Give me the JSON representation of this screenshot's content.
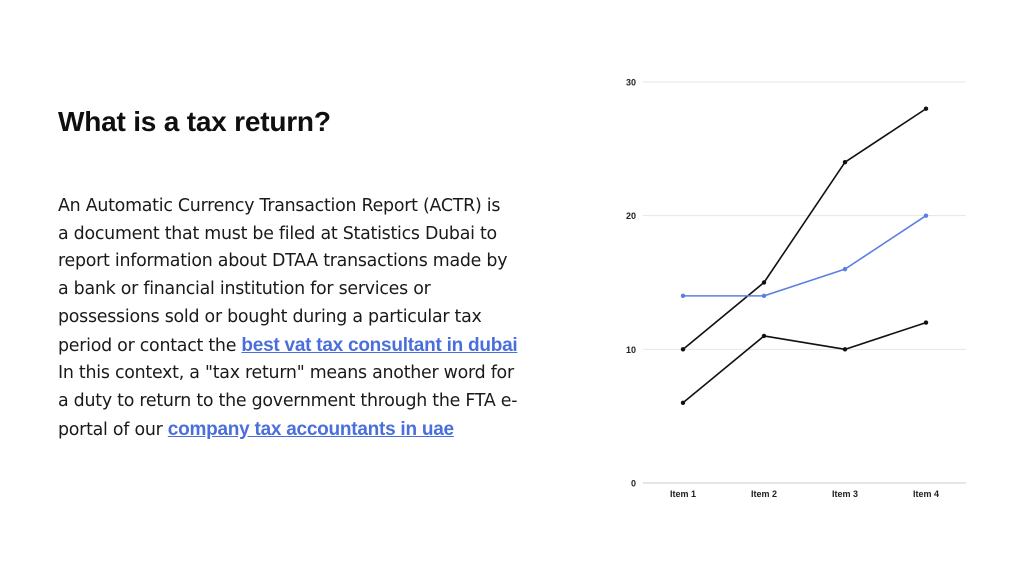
{
  "slide": {
    "title": "What is a tax return?",
    "body": {
      "lines": [
        "An Automatic Currency Transaction Report (ACTR) is",
        "a document that must be filed at Statistics Dubai to",
        "report information about DTAA transactions made by",
        "a bank or financial institution for services or",
        "possessions sold or bought during a particular tax"
      ],
      "line6_before": "period or contact the ",
      "link1": "best vat tax consultant in dubai",
      "line7": " In this context, a \"tax return\" means another word for",
      "line8": "a duty to return to the government through the FTA e-",
      "line9_before": "portal of our ",
      "link2": "company tax accountants in uae"
    }
  },
  "colors": {
    "text": "#1a1a1a",
    "link": "#4a6fdc",
    "series_black": "#111111",
    "series_blue": "#5b7fe0",
    "grid": "#e6e6e6"
  },
  "chart_data": {
    "type": "line",
    "title": "",
    "xlabel": "",
    "ylabel": "",
    "categories": [
      "Item 1",
      "Item 2",
      "Item 3",
      "Item 4"
    ],
    "ylim": [
      0,
      30
    ],
    "yticks": [
      0,
      10,
      20,
      30
    ],
    "grid": true,
    "legend": "none",
    "series": [
      {
        "values": [
          10,
          15,
          24,
          28
        ],
        "color": "#111111"
      },
      {
        "values": [
          14,
          14,
          16,
          20
        ],
        "color": "#5b7fe0"
      },
      {
        "values": [
          6,
          11,
          10,
          12
        ],
        "color": "#111111"
      }
    ]
  }
}
